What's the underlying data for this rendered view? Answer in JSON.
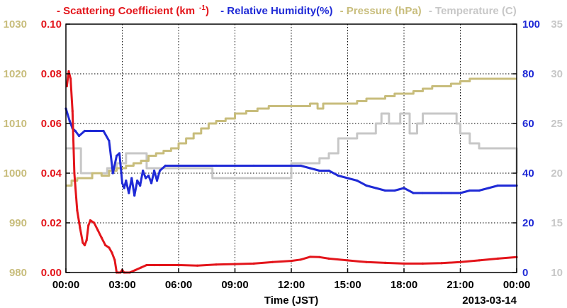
{
  "legend": {
    "scattering": "- Scattering Coefficient (km",
    "scattering_sup": "-1",
    "scattering_end": ")",
    "humidity": "- Relative Humidity(%)",
    "pressure": "- Pressure (hPa)",
    "temperature": "- Temperature (C)"
  },
  "colors": {
    "scattering": "#e3151b",
    "humidity": "#1f2ad6",
    "pressure": "#c8bd7c",
    "temperature": "#c7c7c7"
  },
  "chart_data": {
    "type": "line",
    "xlabel": "Time (JST)",
    "date_label": "2013-03-14",
    "x_unit": "hours (JST)",
    "xlim": [
      0,
      24
    ],
    "x_ticks": [
      0,
      3,
      6,
      9,
      12,
      15,
      18,
      21,
      24
    ],
    "x_tick_labels": [
      "00:00",
      "03:00",
      "06:00",
      "09:00",
      "12:00",
      "15:00",
      "18:00",
      "21:00",
      "00:00"
    ],
    "grid": true,
    "axes": {
      "pressure": {
        "side": "left-outer",
        "ylim": [
          980,
          1030
        ],
        "ticks": [
          "980",
          "990",
          "1000",
          "1010",
          "1020",
          "1030"
        ]
      },
      "scattering": {
        "side": "left-inner",
        "ylim": [
          0,
          0.1
        ],
        "ticks": [
          "0.00",
          "0.02",
          "0.04",
          "0.06",
          "0.08",
          "0.10"
        ]
      },
      "humidity": {
        "side": "right-inner",
        "ylim": [
          0,
          100
        ],
        "ticks": [
          "0",
          "20",
          "40",
          "60",
          "80",
          "100"
        ]
      },
      "temperature": {
        "side": "right-outer",
        "ylim": [
          10,
          35
        ],
        "ticks": [
          "10",
          "15",
          "20",
          "25",
          "30",
          "35"
        ]
      }
    },
    "series": [
      {
        "name": "Scattering Coefficient (km-1)",
        "axis": "scattering",
        "x": [
          0.05,
          0.15,
          0.25,
          0.35,
          0.45,
          0.6,
          0.75,
          0.9,
          1.0,
          1.1,
          1.2,
          1.3,
          1.5,
          1.7,
          1.9,
          2.1,
          2.3,
          2.45,
          2.6,
          2.7,
          2.8,
          2.9,
          3.0,
          3.1,
          3.2,
          3.4,
          3.7,
          4.0,
          4.3,
          4.7,
          5.0,
          6.0,
          7.0,
          8.0,
          9.0,
          10.0,
          11.0,
          12.0,
          12.5,
          13.0,
          13.5,
          14.0,
          15.0,
          16.0,
          17.0,
          18.0,
          19.0,
          20.0,
          21.0,
          22.0,
          23.0,
          24.0
        ],
        "values": [
          0.075,
          0.081,
          0.078,
          0.065,
          0.04,
          0.025,
          0.018,
          0.012,
          0.011,
          0.013,
          0.019,
          0.021,
          0.02,
          0.017,
          0.014,
          0.011,
          0.01,
          0.008,
          0.005,
          0.0,
          0.0,
          0.0,
          0.001,
          0.0,
          0.0,
          0.0,
          0.001,
          0.002,
          0.003,
          0.003,
          0.003,
          0.003,
          0.0028,
          0.0032,
          0.0034,
          0.0036,
          0.0042,
          0.0047,
          0.0052,
          0.0063,
          0.0062,
          0.0056,
          0.0049,
          0.0042,
          0.0039,
          0.0036,
          0.0036,
          0.0038,
          0.0042,
          0.0049,
          0.0056,
          0.0062
        ]
      },
      {
        "name": "Relative Humidity(%)",
        "axis": "humidity",
        "x": [
          0.0,
          0.2,
          0.35,
          0.5,
          0.7,
          1.0,
          1.3,
          1.6,
          2.0,
          2.3,
          2.5,
          2.7,
          2.85,
          3.0,
          3.1,
          3.2,
          3.35,
          3.5,
          3.65,
          3.8,
          3.95,
          4.1,
          4.25,
          4.4,
          4.55,
          4.7,
          4.85,
          5.0,
          5.3,
          6.0,
          8.0,
          10.0,
          12.0,
          12.5,
          13.0,
          13.5,
          14.0,
          14.5,
          15.0,
          15.5,
          16.0,
          16.5,
          17.0,
          17.5,
          18.0,
          18.5,
          19.0,
          20.0,
          20.5,
          21.0,
          21.5,
          22.0,
          22.5,
          23.0,
          24.0
        ],
        "values": [
          66,
          61,
          58,
          57,
          55,
          57,
          57,
          57,
          57,
          53,
          40,
          47,
          48,
          36,
          34,
          37,
          32,
          38,
          31,
          37,
          35,
          41,
          38,
          39,
          36,
          41,
          37,
          41,
          43,
          43,
          43,
          43,
          43,
          43,
          42,
          41,
          41,
          39,
          38,
          37,
          35,
          34,
          33,
          33,
          34,
          32,
          32,
          32,
          32,
          32,
          33,
          33,
          34,
          35,
          35
        ]
      },
      {
        "name": "Pressure (hPa)",
        "axis": "pressure",
        "step": true,
        "x": [
          0.0,
          0.3,
          0.6,
          1.0,
          1.4,
          1.9,
          2.3,
          2.7,
          3.2,
          3.6,
          4.0,
          4.4,
          4.8,
          5.2,
          5.6,
          6.0,
          6.4,
          6.8,
          7.2,
          7.6,
          8.0,
          8.5,
          9.0,
          9.6,
          10.2,
          10.8,
          11.4,
          12.0,
          12.6,
          13.0,
          13.4,
          13.7,
          14.5,
          15.0,
          15.5,
          16.0,
          16.5,
          17.0,
          17.5,
          18.0,
          18.5,
          19.0,
          19.5,
          20.0,
          20.5,
          21.0,
          21.5,
          22.0,
          24.0
        ],
        "values": [
          997.5,
          998.5,
          999.0,
          999.0,
          1000.0,
          999.5,
          1000.5,
          1001.0,
          1001.5,
          1002.0,
          1002.5,
          1003.5,
          1004.0,
          1004.5,
          1005.0,
          1006.0,
          1007.0,
          1008.0,
          1009.0,
          1010.0,
          1010.5,
          1011.0,
          1012.0,
          1012.5,
          1013.0,
          1013.5,
          1013.5,
          1013.5,
          1013.5,
          1014.0,
          1013.0,
          1014.0,
          1014.0,
          1014.0,
          1014.5,
          1015.0,
          1015.0,
          1015.5,
          1016.0,
          1016.0,
          1016.5,
          1017.0,
          1017.5,
          1017.5,
          1018.0,
          1018.5,
          1019.0,
          1019.0,
          1019.0
        ]
      },
      {
        "name": "Temperature (C)",
        "axis": "temperature",
        "step": true,
        "x": [
          0.0,
          0.5,
          0.8,
          2.2,
          2.7,
          3.2,
          4.3,
          6.0,
          7.8,
          10.0,
          12.0,
          13.5,
          14.0,
          14.5,
          15.5,
          16.0,
          16.5,
          16.8,
          17.2,
          17.8,
          18.3,
          18.7,
          19.0,
          20.5,
          20.8,
          21.0,
          21.5,
          22.0,
          22.5,
          24.0
        ],
        "values": [
          22.5,
          22.5,
          20.0,
          20.5,
          21.0,
          22.0,
          20.5,
          20.5,
          19.5,
          19.5,
          21.0,
          21.5,
          22.0,
          23.5,
          24.0,
          24.0,
          25.0,
          26.0,
          25.0,
          26.0,
          24.0,
          25.0,
          26.0,
          26.0,
          25.0,
          24.0,
          23.0,
          22.5,
          22.5,
          20.0
        ]
      }
    ]
  }
}
